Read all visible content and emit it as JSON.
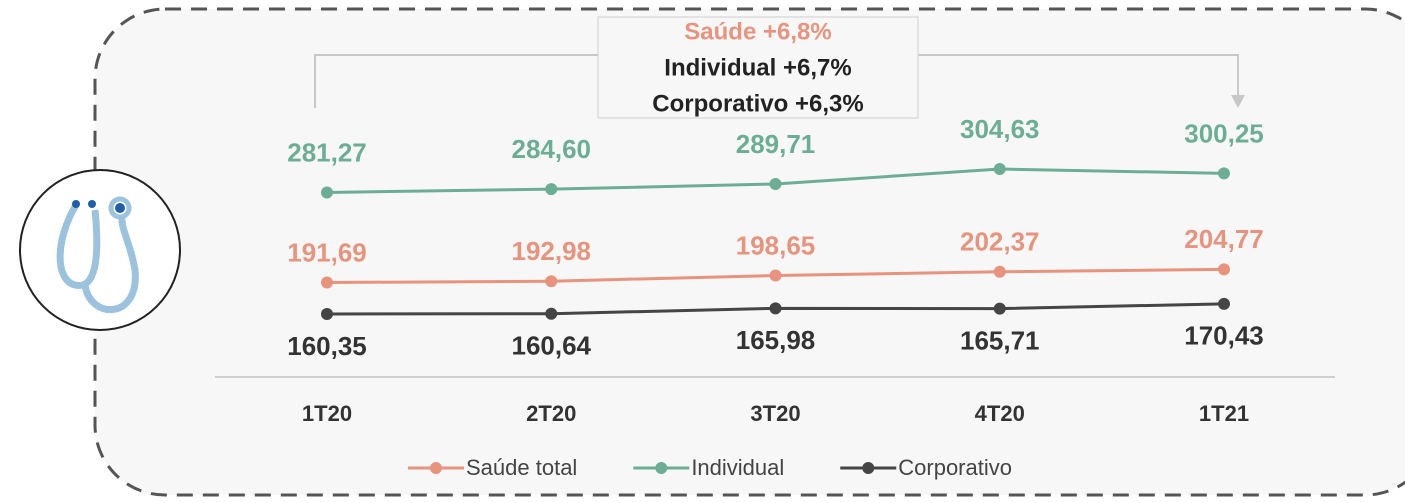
{
  "chart_data": {
    "type": "line",
    "annotations": [
      "Saúde +6,8%",
      "Individual +6,7%",
      "Corporativo +6,3%"
    ],
    "categories": [
      "1T20",
      "2T20",
      "3T20",
      "4T20",
      "1T21"
    ],
    "series": [
      {
        "name": "Saúde total",
        "color": "#e8937d",
        "values": [
          191.69,
          192.98,
          198.65,
          202.37,
          204.77
        ],
        "value_labels": [
          "191,69",
          "192,98",
          "198,65",
          "202,37",
          "204,77"
        ]
      },
      {
        "name": "Individual",
        "color": "#6cae95",
        "values": [
          281.27,
          284.6,
          289.71,
          304.63,
          300.25
        ],
        "value_labels": [
          "281,27",
          "284,60",
          "289,71",
          "304,63",
          "300,25"
        ]
      },
      {
        "name": "Corporativo",
        "color": "#454545",
        "values": [
          160.35,
          160.64,
          165.98,
          165.71,
          170.43
        ],
        "value_labels": [
          "160,35",
          "160,64",
          "165,98",
          "165,71",
          "170,43"
        ]
      }
    ],
    "legend": "bottom"
  }
}
